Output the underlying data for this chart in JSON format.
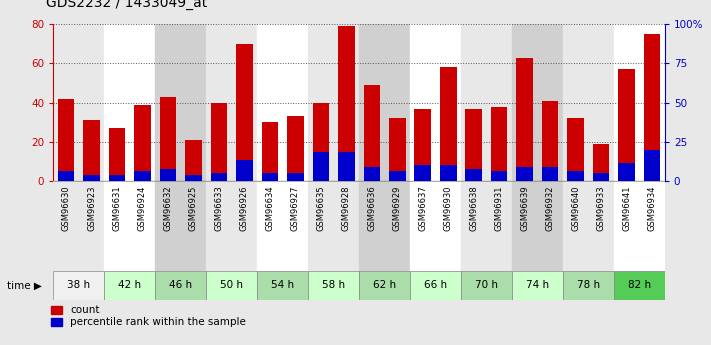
{
  "title": "GDS2232 / 1433049_at",
  "samples": [
    "GSM96630",
    "GSM96923",
    "GSM96631",
    "GSM96924",
    "GSM96632",
    "GSM96925",
    "GSM96633",
    "GSM96926",
    "GSM96634",
    "GSM96927",
    "GSM96635",
    "GSM96928",
    "GSM96636",
    "GSM96929",
    "GSM96637",
    "GSM96930",
    "GSM96638",
    "GSM96931",
    "GSM96639",
    "GSM96932",
    "GSM96640",
    "GSM96933",
    "GSM96641",
    "GSM96934"
  ],
  "count_values": [
    42,
    31,
    27,
    39,
    43,
    21,
    40,
    70,
    30,
    33,
    40,
    79,
    49,
    32,
    37,
    58,
    37,
    38,
    63,
    41,
    32,
    19,
    57,
    75
  ],
  "percentile_values": [
    5,
    3,
    3,
    5,
    6,
    3,
    4,
    11,
    4,
    4,
    15,
    15,
    7,
    5,
    8,
    8,
    6,
    5,
    7,
    7,
    5,
    4,
    9,
    16
  ],
  "time_groups": [
    {
      "label": "38 h",
      "start": 0,
      "end": 2
    },
    {
      "label": "42 h",
      "start": 2,
      "end": 4
    },
    {
      "label": "46 h",
      "start": 4,
      "end": 6
    },
    {
      "label": "50 h",
      "start": 6,
      "end": 8
    },
    {
      "label": "54 h",
      "start": 8,
      "end": 10
    },
    {
      "label": "58 h",
      "start": 10,
      "end": 12
    },
    {
      "label": "62 h",
      "start": 12,
      "end": 14
    },
    {
      "label": "66 h",
      "start": 14,
      "end": 16
    },
    {
      "label": "70 h",
      "start": 16,
      "end": 18
    },
    {
      "label": "74 h",
      "start": 18,
      "end": 20
    },
    {
      "label": "78 h",
      "start": 20,
      "end": 22
    },
    {
      "label": "82 h",
      "start": 22,
      "end": 24
    }
  ],
  "col_bg_colors": [
    "#e8e8e8",
    "#e8e8e8",
    "#ffffff",
    "#ffffff",
    "#d0d0d0",
    "#d0d0d0",
    "#e8e8e8",
    "#e8e8e8",
    "#ffffff",
    "#ffffff",
    "#e8e8e8",
    "#e8e8e8",
    "#d0d0d0",
    "#d0d0d0",
    "#ffffff",
    "#ffffff",
    "#e8e8e8",
    "#e8e8e8",
    "#d0d0d0",
    "#d0d0d0",
    "#e8e8e8",
    "#e8e8e8",
    "#ffffff",
    "#ffffff"
  ],
  "time_row_colors": [
    "#f0f0f0",
    "#ccffcc",
    "#aaddaa",
    "#ccffcc",
    "#aaddaa",
    "#ccffcc",
    "#aaddaa",
    "#ccffcc",
    "#aaddaa",
    "#ccffcc",
    "#aaddaa",
    "#55cc55"
  ],
  "bar_color_red": "#cc0000",
  "bar_color_blue": "#0000cc",
  "ylim_left": [
    0,
    80
  ],
  "ylim_right": [
    0,
    100
  ],
  "yticks_left": [
    0,
    20,
    40,
    60,
    80
  ],
  "yticks_right": [
    0,
    25,
    50,
    75,
    100
  ],
  "ytick_labels_right": [
    "0",
    "25",
    "50",
    "75",
    "100%"
  ],
  "background_color": "#e8e8e8",
  "plot_bg": "#ffffff",
  "title_fontsize": 10,
  "axis_color_left": "#cc0000",
  "axis_color_right": "#0000cc",
  "legend_count_label": "count",
  "legend_percentile_label": "percentile rank within the sample"
}
